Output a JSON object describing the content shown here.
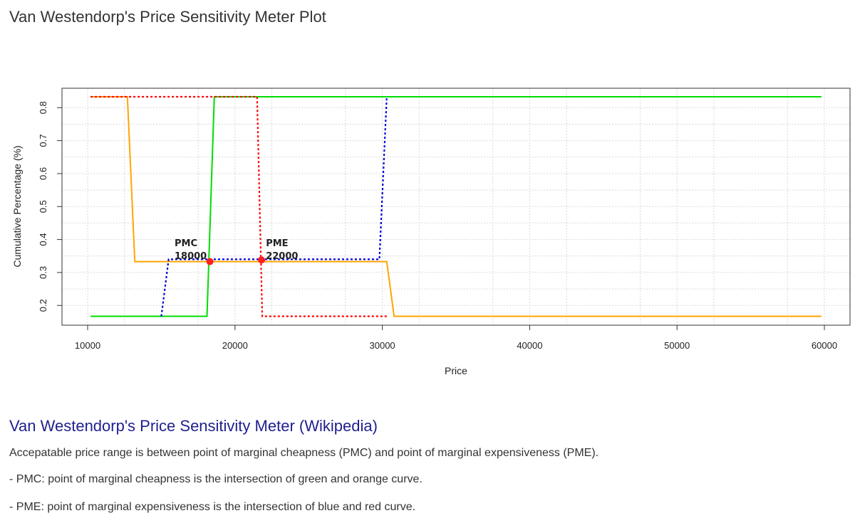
{
  "page": {
    "title": "Van Westendorp's Price Sensitivity Meter Plot"
  },
  "chart_data": {
    "type": "line",
    "title": "",
    "xlabel": "Price",
    "ylabel": "Cumulative Percentage (%)",
    "xlim": [
      10000,
      60000
    ],
    "ylim": [
      0.166,
      0.833
    ],
    "x_ticks": [
      10000,
      20000,
      30000,
      40000,
      50000,
      60000
    ],
    "y_ticks": [
      0.2,
      0.3,
      0.4,
      0.5,
      0.6,
      0.7,
      0.8
    ],
    "grid": true,
    "series": [
      {
        "color": "#FFA500",
        "dash": "solid",
        "points": [
          [
            10200,
            0.833
          ],
          [
            12700,
            0.833
          ],
          [
            13200,
            0.333
          ],
          [
            30300,
            0.333
          ],
          [
            30800,
            0.167
          ],
          [
            59800,
            0.167
          ]
        ]
      },
      {
        "color": "#00DD00",
        "dash": "solid",
        "points": [
          [
            10200,
            0.167
          ],
          [
            18100,
            0.167
          ],
          [
            18600,
            0.833
          ],
          [
            59800,
            0.833
          ]
        ]
      },
      {
        "color": "#FF0000",
        "dash": "dotted",
        "points": [
          [
            10200,
            0.833
          ],
          [
            21500,
            0.833
          ],
          [
            21850,
            0.167
          ],
          [
            30300,
            0.167
          ]
        ]
      },
      {
        "color": "#0000DD",
        "dash": "dotted",
        "points": [
          [
            15000,
            0.167
          ],
          [
            15500,
            0.34
          ],
          [
            29800,
            0.34
          ],
          [
            30300,
            0.833
          ]
        ]
      }
    ],
    "annotations": [
      {
        "label": "PMC",
        "value": "18000",
        "x": 18300,
        "y": 0.333,
        "tx": 15900,
        "ty": 0.375
      },
      {
        "label": "PME",
        "value": "22000",
        "x": 21800,
        "y": 0.338,
        "tx": 22100,
        "ty": 0.375
      }
    ]
  },
  "info": {
    "section_title": "Van Westendorp's Price Sensitivity Meter (Wikipedia)",
    "paragraphs": [
      "Accepatable price range is between point of marginal cheapness (PMC) and point of marginal expensiveness (PME).",
      "- PMC: point of marginal cheapness is the intersection of green and orange curve.",
      "- PME: point of marginal expensiveness is the intersection of blue and red curve."
    ]
  }
}
